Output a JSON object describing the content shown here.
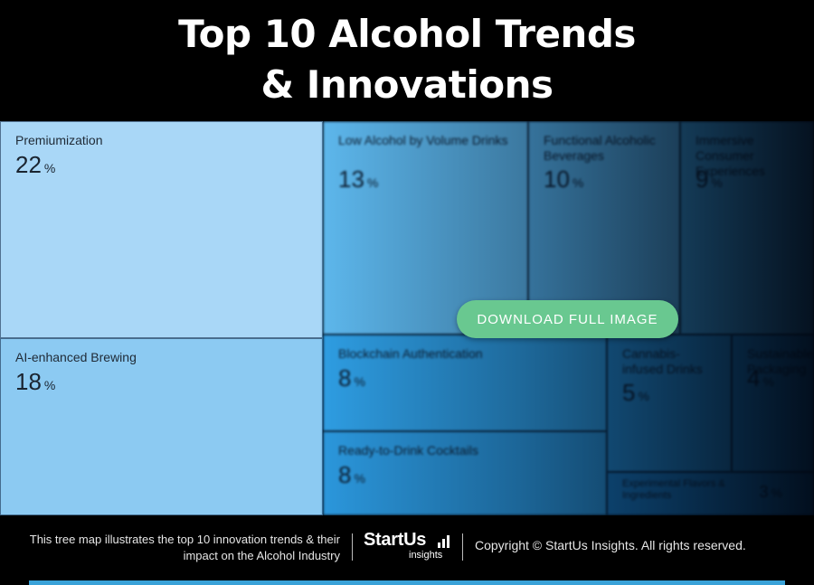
{
  "title": {
    "line1": "Top 10 Alcohol Trends",
    "line2": "& Innovations"
  },
  "chart_data": {
    "type": "treemap",
    "unit": "%",
    "items": [
      {
        "label": "Premiumization",
        "value": 22,
        "color": "#a9d7f7"
      },
      {
        "label": "AI-enhanced Brewing",
        "value": 18,
        "color": "#8ccaf2"
      },
      {
        "label": "Low Alcohol by Volume Drinks",
        "value": 13,
        "color": "#5db7ec"
      },
      {
        "label": "Functional Alcoholic Beverages",
        "value": 10,
        "color": "#55b0e8"
      },
      {
        "label": "Immersive Consumer Experiences",
        "value": 9,
        "color": "#3fa6e4"
      },
      {
        "label": "Blockchain Authentication",
        "value": 8,
        "color": "#2e9de2"
      },
      {
        "label": "Ready-to-Drink Cocktails",
        "value": 8,
        "color": "#2b97dc"
      },
      {
        "label": "Cannabis-infused Drinks",
        "value": 5,
        "color": "#2590d8"
      },
      {
        "label": "Sustainable Packaging",
        "value": 4,
        "color": "#1f88d2"
      },
      {
        "label": "Experimental Flavors & Ingredients",
        "value": 3,
        "color": "#1a80cc"
      }
    ]
  },
  "download_button": {
    "label": "DOWNLOAD FULL IMAGE",
    "color": "#69c890"
  },
  "footer": {
    "caption": "This tree map illustrates the top 10 innovation trends & their impact on the Alcohol Industry",
    "logo_brand": "StartUs",
    "logo_sub": "insights",
    "copyright": "Copyright © StartUs Insights. All rights reserved."
  }
}
